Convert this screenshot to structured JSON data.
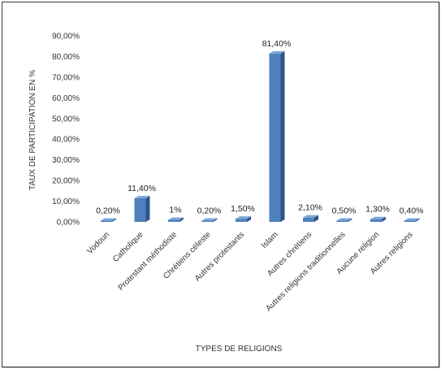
{
  "chart_data": {
    "type": "bar",
    "style": "3d-column",
    "categories": [
      "Vodoun",
      "Catholique",
      "Protestant méthodiste",
      "Chrétiens céleste",
      "Autres protestants",
      "Islam",
      "Autres chrétiens",
      "Autres religions traditionnelles",
      "Aucune religion",
      "Autres religions"
    ],
    "values": [
      0.2,
      11.4,
      1.0,
      0.2,
      1.5,
      81.4,
      2.1,
      0.5,
      1.3,
      0.4
    ],
    "data_labels": [
      "0,20%",
      "11,40%",
      "1%",
      "0,20%",
      "1,50%",
      "81,40%",
      "2,10%",
      "0,50%",
      "1,30%",
      "0,40%"
    ],
    "yticks": [
      "0,00%",
      "10,00%",
      "20,00%",
      "30,00%",
      "40,00%",
      "50,00%",
      "60,00%",
      "70,00%",
      "80,00%",
      "90,00%"
    ],
    "ylim": [
      0,
      90
    ],
    "ylabel": "TAUX DE PARTICIPATION EN %",
    "xlabel": "TYPES DE RELIGIONS",
    "grid": false,
    "legend": "none",
    "colors": {
      "front": "#4f81bd",
      "top": "#7fa7da",
      "side": "#2d5687",
      "text": "#333333"
    }
  }
}
